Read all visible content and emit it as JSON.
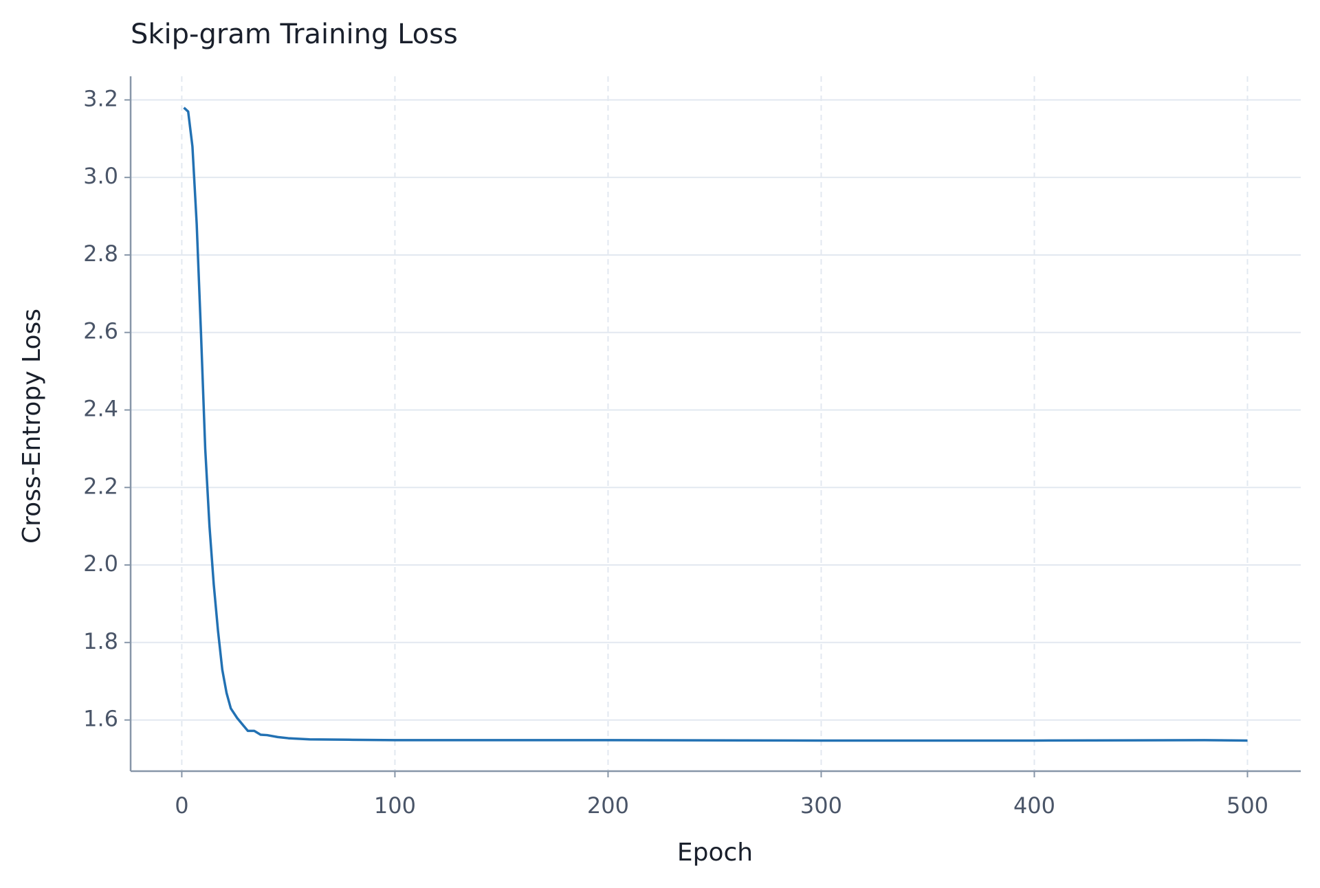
{
  "chart_data": {
    "type": "line",
    "title": "Skip-gram Training Loss",
    "x_label": "Epoch",
    "y_label": "Cross-Entropy Loss",
    "x": [
      1,
      3,
      5,
      7,
      9,
      11,
      13,
      15,
      17,
      19,
      21,
      23,
      26,
      29,
      31,
      34,
      37,
      40,
      45,
      50,
      60,
      80,
      100,
      200,
      300,
      400,
      480,
      500
    ],
    "series": [
      {
        "name": "Loss",
        "color": "#2271b3",
        "values": [
          3.18,
          3.17,
          3.08,
          2.88,
          2.6,
          2.3,
          2.1,
          1.95,
          1.83,
          1.73,
          1.67,
          1.63,
          1.605,
          1.585,
          1.572,
          1.572,
          1.562,
          1.561,
          1.556,
          1.553,
          1.55,
          1.549,
          1.548,
          1.548,
          1.547,
          1.547,
          1.548,
          1.547
        ]
      }
    ],
    "xlim": [
      -24,
      525
    ],
    "ylim": [
      1.468,
      3.261
    ],
    "xticks": [
      0,
      100,
      200,
      300,
      400,
      500
    ],
    "yticks": [
      {
        "value": 1.6,
        "label": "1.6"
      },
      {
        "value": 1.8,
        "label": "1.8"
      },
      {
        "value": 2.0,
        "label": "2.0"
      },
      {
        "value": 2.2,
        "label": "2.2"
      },
      {
        "value": 2.4,
        "label": "2.4"
      },
      {
        "value": 2.6,
        "label": "2.6"
      },
      {
        "value": 2.8,
        "label": "2.8"
      },
      {
        "value": 3.0,
        "label": "3.0"
      },
      {
        "value": 3.2,
        "label": "3.2"
      }
    ],
    "grid": true
  }
}
